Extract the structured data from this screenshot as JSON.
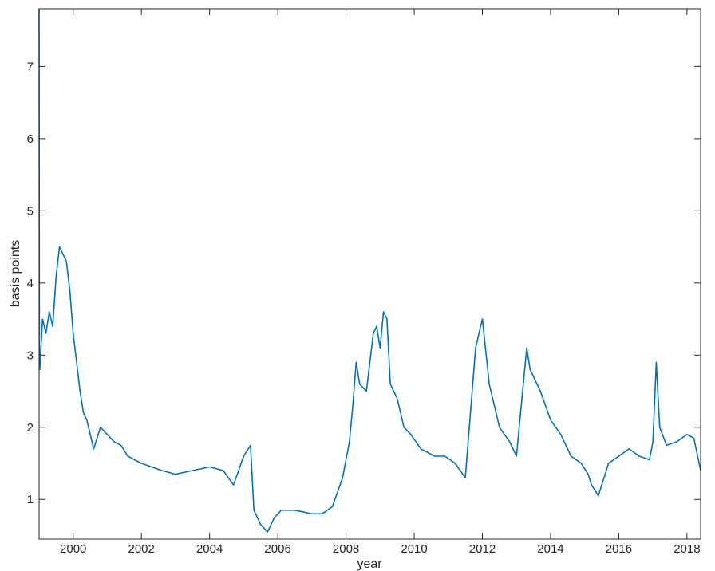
{
  "chart_data": {
    "type": "line",
    "title": "",
    "xlabel": "year",
    "ylabel": "basis points",
    "xlim": [
      1999.0,
      2018.4
    ],
    "ylim": [
      0.45,
      7.8
    ],
    "grid": false,
    "legend": "none",
    "series_color": "#0072BD",
    "xticks": [
      2000,
      2002,
      2004,
      2006,
      2008,
      2010,
      2012,
      2014,
      2016,
      2018
    ],
    "xtick_labels": [
      "2000",
      "2002",
      "2004",
      "2006",
      "2008",
      "2010",
      "2012",
      "2014",
      "2016",
      "2018"
    ],
    "yticks": [
      1,
      2,
      3,
      4,
      5,
      6,
      7
    ],
    "ytick_labels": [
      "1",
      "2",
      "3",
      "4",
      "5",
      "6",
      "7"
    ],
    "series": [
      {
        "x": [
          1999.0,
          1999.01,
          1999.02,
          1999.1,
          1999.2,
          1999.3,
          1999.4,
          1999.5,
          1999.6,
          1999.7,
          1999.8,
          1999.9,
          2000.0,
          2000.1,
          2000.2,
          2000.3,
          2000.4,
          2000.5,
          2000.6,
          2000.8,
          2001.0,
          2001.2,
          2001.4,
          2001.6,
          2001.8,
          2002.0,
          2002.3,
          2002.6,
          2003.0,
          2003.5,
          2004.0,
          2004.4,
          2004.7,
          2005.0,
          2005.2,
          2005.3,
          2005.5,
          2005.7,
          2005.9,
          2006.1,
          2006.5,
          2007.0,
          2007.3,
          2007.6,
          2007.9,
          2008.1,
          2008.2,
          2008.3,
          2008.4,
          2008.6,
          2008.8,
          2008.9,
          2009.0,
          2009.1,
          2009.2,
          2009.3,
          2009.5,
          2009.7,
          2009.9,
          2010.2,
          2010.6,
          2010.9,
          2011.2,
          2011.5,
          2011.7,
          2011.8,
          2011.9,
          2012.0,
          2012.2,
          2012.5,
          2012.8,
          2013.0,
          2013.2,
          2013.3,
          2013.4,
          2013.7,
          2014.0,
          2014.3,
          2014.6,
          2014.9,
          2015.1,
          2015.2,
          2015.4,
          2015.7,
          2016.0,
          2016.3,
          2016.6,
          2016.9,
          2017.0,
          2017.1,
          2017.2,
          2017.4,
          2017.7,
          2018.0,
          2018.2,
          2018.4
        ],
        "y": [
          7.8,
          3.0,
          2.8,
          3.5,
          3.3,
          3.6,
          3.4,
          4.1,
          4.5,
          4.4,
          4.3,
          3.9,
          3.3,
          2.9,
          2.5,
          2.2,
          2.1,
          1.9,
          1.7,
          2.0,
          1.9,
          1.8,
          1.75,
          1.6,
          1.55,
          1.5,
          1.45,
          1.4,
          1.35,
          1.4,
          1.45,
          1.4,
          1.2,
          1.6,
          1.75,
          0.85,
          0.65,
          0.55,
          0.75,
          0.85,
          0.85,
          0.8,
          0.8,
          0.9,
          1.3,
          1.8,
          2.3,
          2.9,
          2.6,
          2.5,
          3.3,
          3.4,
          3.1,
          3.6,
          3.5,
          2.6,
          2.4,
          2.0,
          1.9,
          1.7,
          1.6,
          1.6,
          1.5,
          1.3,
          2.5,
          3.1,
          3.3,
          3.5,
          2.6,
          2.0,
          1.8,
          1.6,
          2.6,
          3.1,
          2.8,
          2.5,
          2.1,
          1.9,
          1.6,
          1.5,
          1.35,
          1.2,
          1.05,
          1.5,
          1.6,
          1.7,
          1.6,
          1.55,
          1.8,
          2.9,
          2.0,
          1.75,
          1.8,
          1.9,
          1.85,
          1.4
        ]
      }
    ]
  }
}
